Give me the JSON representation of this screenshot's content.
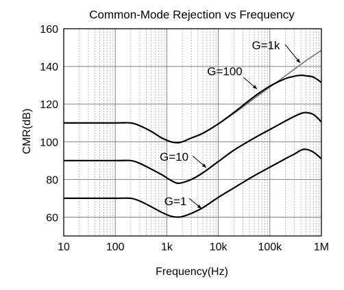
{
  "chart_data": {
    "type": "line",
    "title": "Common-Mode Rejection vs Frequency",
    "xlabel": "Frequency(Hz)",
    "ylabel": "CMR(dB)",
    "x_scale": "log",
    "xlim": [
      10,
      1000000
    ],
    "ylim": [
      50,
      160
    ],
    "grid": true,
    "x_ticks": [
      10,
      100,
      1000,
      10000,
      100000,
      1000000
    ],
    "x_tick_labels": [
      "10",
      "100",
      "1k",
      "10k",
      "100k",
      "1M"
    ],
    "y_ticks": [
      60,
      80,
      100,
      120,
      140,
      160
    ],
    "y_tick_labels": [
      "60",
      "80",
      "100",
      "120",
      "140",
      "160"
    ],
    "series": [
      {
        "name": "G=1",
        "color": "#000000",
        "x": [
          10,
          100,
          200,
          300,
          500,
          800,
          1200,
          1600,
          2000,
          3000,
          5000,
          10000,
          20000,
          50000,
          100000,
          200000,
          300000,
          400000,
          500000,
          700000,
          1000000
        ],
        "y": [
          70,
          70,
          70,
          68.5,
          65.5,
          62.5,
          60.5,
          60,
          60.3,
          62,
          65,
          70.5,
          75.5,
          82,
          86.5,
          91,
          93.5,
          95.5,
          96,
          94.5,
          91
        ]
      },
      {
        "name": "G=10",
        "color": "#000000",
        "x": [
          10,
          100,
          200,
          300,
          500,
          800,
          1200,
          1600,
          2000,
          3000,
          5000,
          10000,
          20000,
          50000,
          100000,
          200000,
          300000,
          400000,
          500000,
          700000,
          1000000
        ],
        "y": [
          90,
          90,
          90,
          88.5,
          85.5,
          82.5,
          79.5,
          78,
          78.3,
          80,
          83.5,
          89.5,
          95.5,
          102,
          106.5,
          111,
          113.5,
          115,
          115.5,
          114.5,
          110.5
        ]
      },
      {
        "name": "G=100",
        "color": "#000000",
        "x": [
          10,
          100,
          200,
          300,
          500,
          800,
          1200,
          1600,
          2000,
          3000,
          5000,
          10000,
          20000,
          50000,
          100000,
          200000,
          300000,
          400000,
          500000,
          700000,
          1000000
        ],
        "y": [
          110,
          110,
          110,
          108.5,
          105.5,
          102,
          100,
          99.5,
          100,
          102,
          104.5,
          109.5,
          115.5,
          124,
          129.5,
          133.5,
          134.8,
          135.3,
          135,
          134.3,
          131.5
        ]
      },
      {
        "name": "G=1k",
        "color": "#7f7f7f",
        "x": [
          10000,
          20000,
          50000,
          100000,
          200000,
          500000,
          1000000
        ],
        "y": [
          109.5,
          115,
          123,
          129,
          135,
          143,
          148.5
        ]
      }
    ],
    "annotations": [
      "G=1k",
      "G=100",
      "G=10",
      "G=1"
    ]
  }
}
